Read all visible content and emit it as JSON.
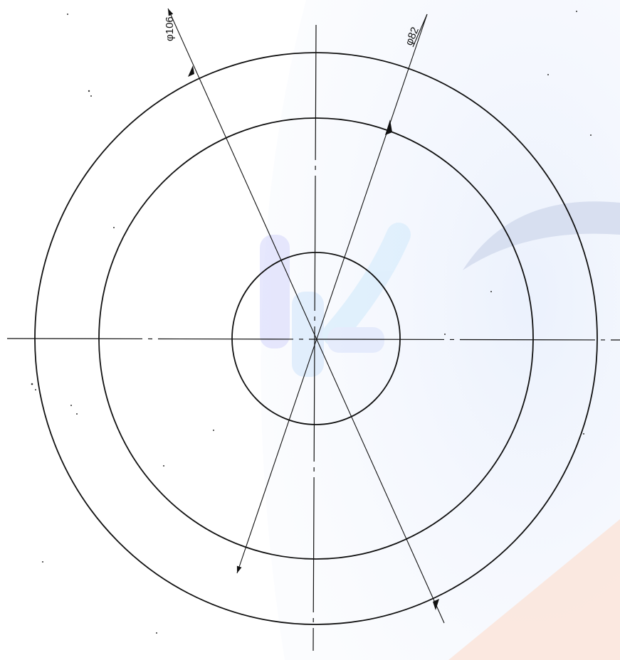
{
  "drawing": {
    "dimensions": {
      "outer": {
        "label": "φ106"
      },
      "middle": {
        "label": "φ82"
      }
    }
  }
}
